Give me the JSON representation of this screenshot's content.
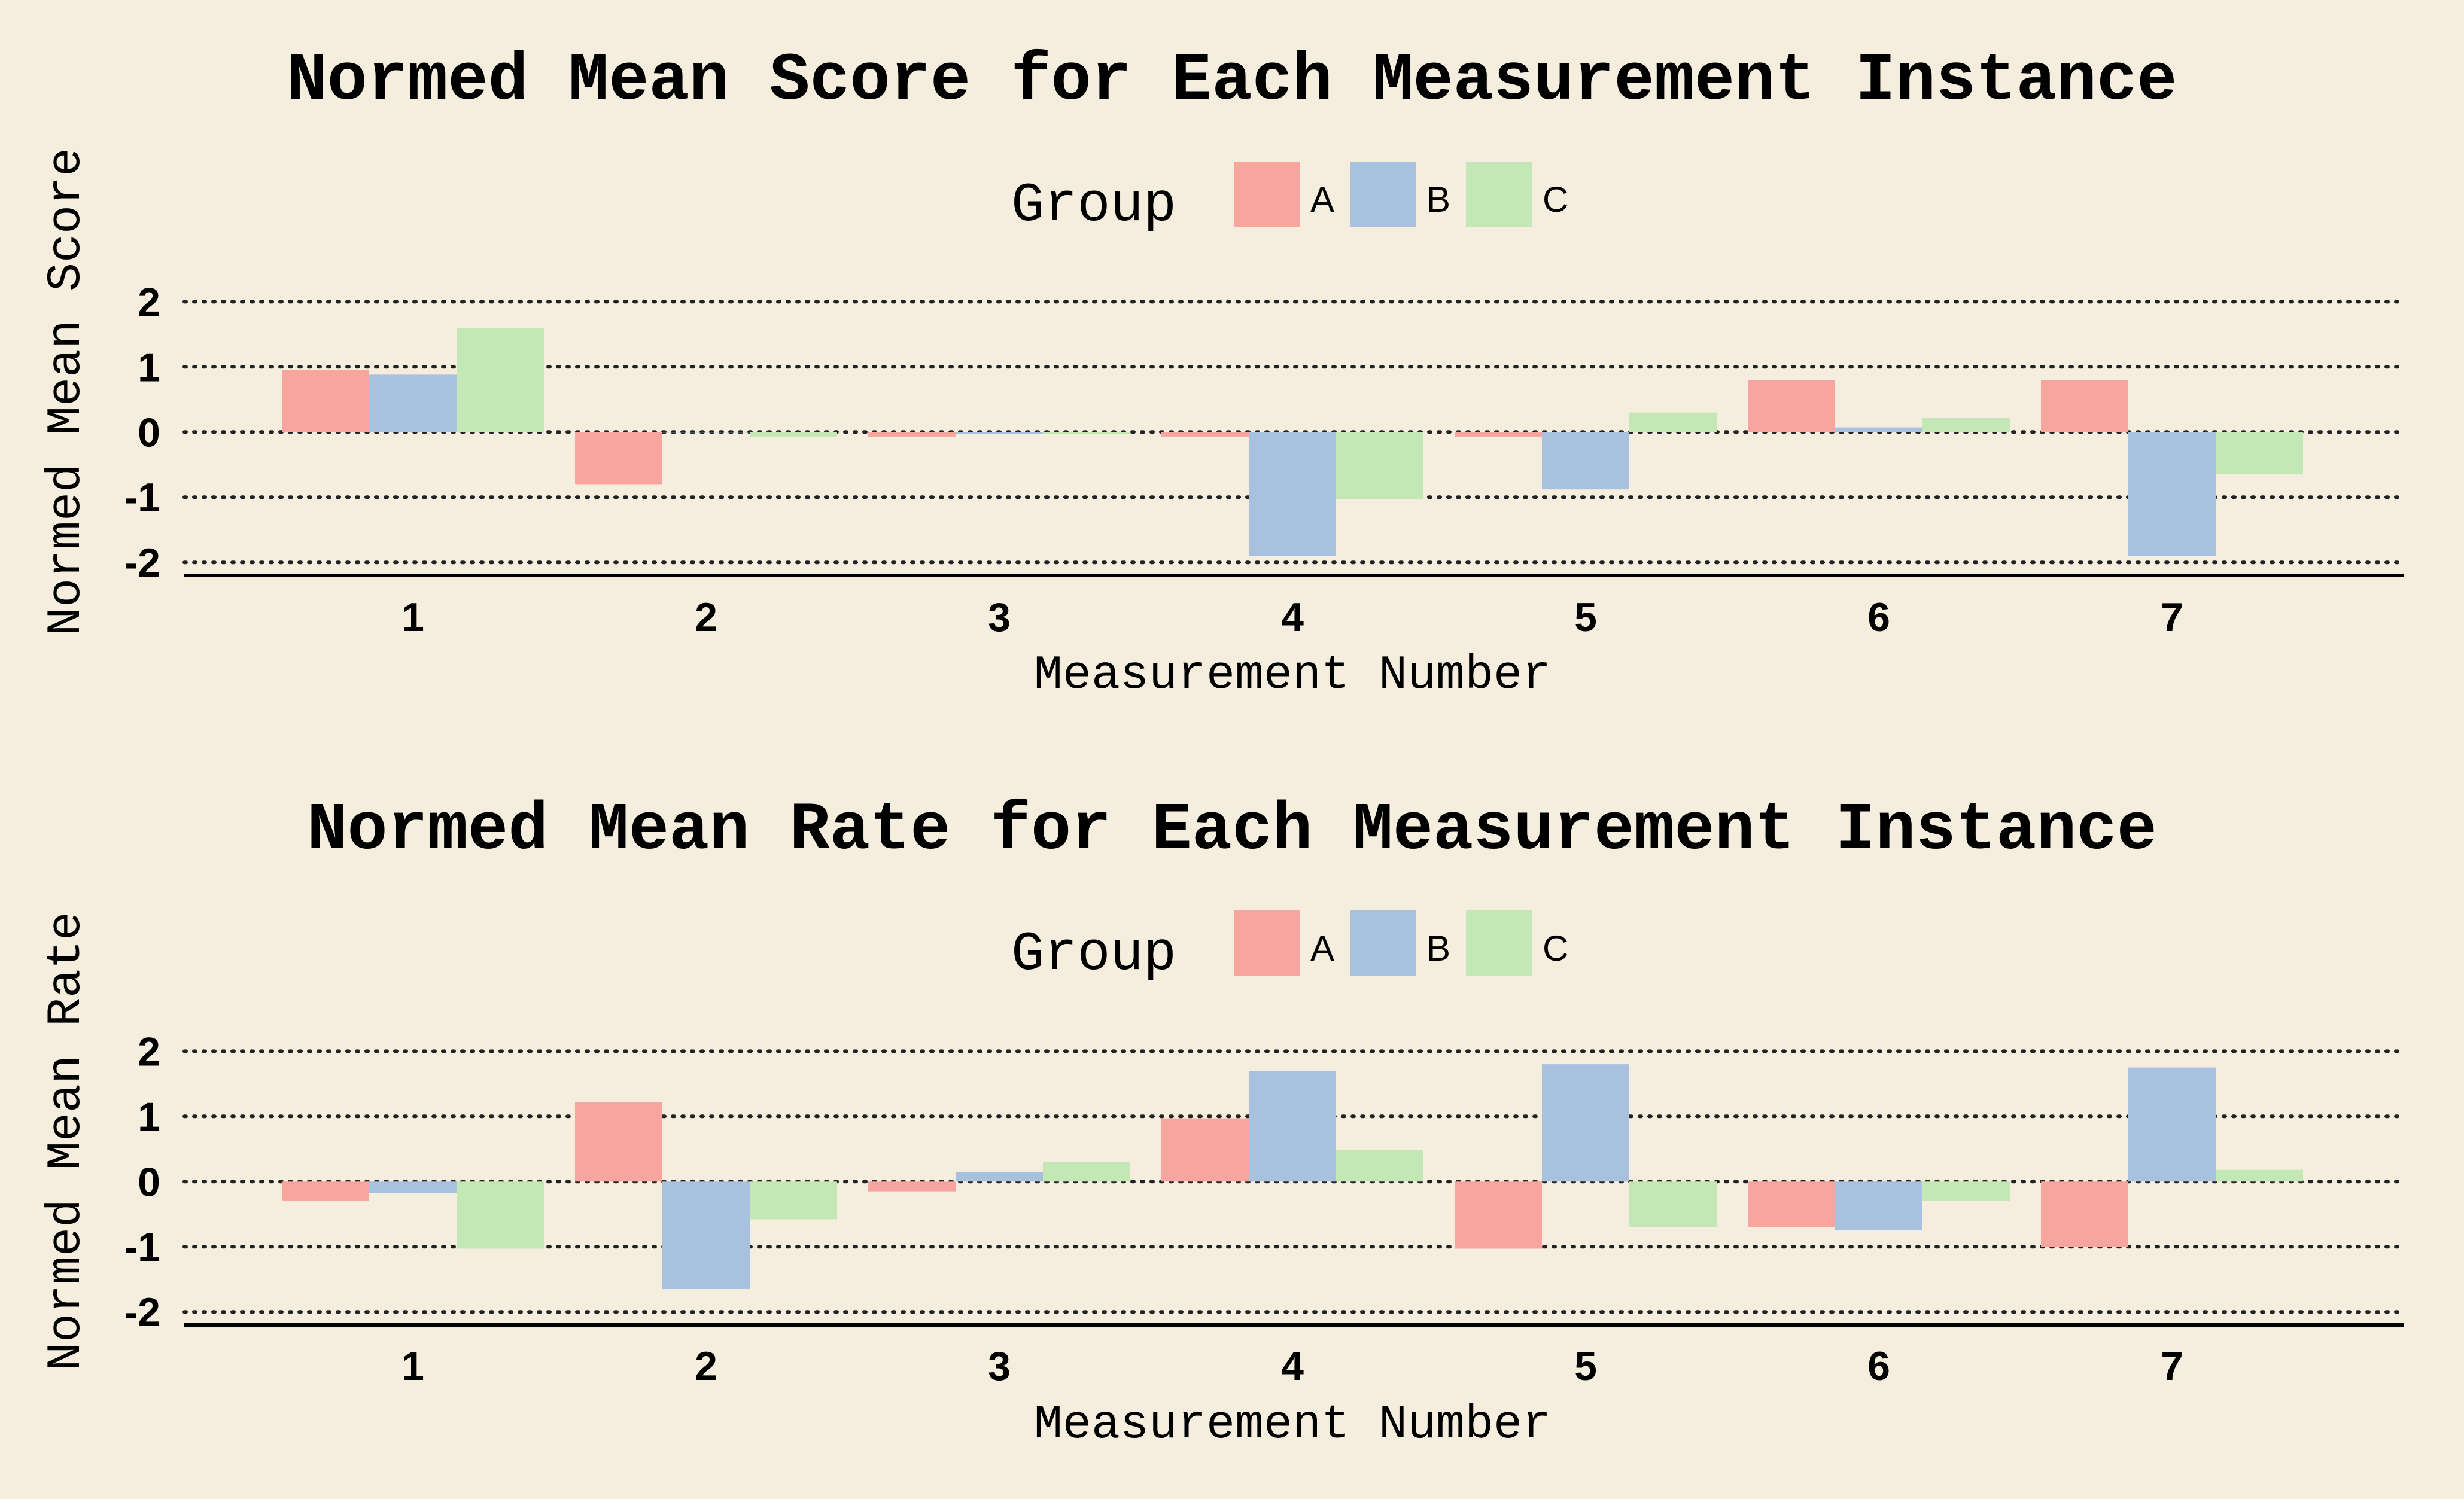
{
  "colors": {
    "background": "#f5eedf",
    "grid": "#222222",
    "axis": "#000000",
    "series": {
      "A": "#f8a5a0",
      "B": "#a8c1de",
      "C": "#c3e7b5"
    }
  },
  "chart_data": [
    {
      "type": "bar",
      "title": "Normed Mean Score for Each Measurement Instance",
      "xlabel": "Measurement Number",
      "ylabel": "Normed Mean Score",
      "legend_title": "Group",
      "legend_placement": "top-center",
      "grid": "horizontal-dotted",
      "ylim": [
        -2.2,
        2.15
      ],
      "yticks": [
        2,
        1,
        0,
        -1,
        -2
      ],
      "categories": [
        "1",
        "2",
        "3",
        "4",
        "5",
        "6",
        "7"
      ],
      "series": [
        {
          "name": "A",
          "values": [
            0.95,
            -0.8,
            -0.07,
            -0.07,
            -0.07,
            0.8,
            0.8
          ]
        },
        {
          "name": "B",
          "values": [
            0.88,
            0.0,
            -0.03,
            -1.9,
            -0.88,
            0.07,
            -1.9
          ]
        },
        {
          "name": "C",
          "values": [
            1.6,
            -0.07,
            -0.03,
            -1.03,
            0.3,
            0.22,
            -0.65
          ]
        }
      ]
    },
    {
      "type": "bar",
      "title": "Normed Mean Rate for Each Measurement Instance",
      "xlabel": "Measurement Number",
      "ylabel": "Normed Mean Rate",
      "legend_title": "Group",
      "legend_placement": "top-center",
      "grid": "horizontal-dotted",
      "ylim": [
        -2.2,
        2.15
      ],
      "yticks": [
        2,
        1,
        0,
        -1,
        -2
      ],
      "categories": [
        "1",
        "2",
        "3",
        "4",
        "5",
        "6",
        "7"
      ],
      "series": [
        {
          "name": "A",
          "values": [
            -0.3,
            1.22,
            -0.15,
            0.97,
            -1.03,
            -0.7,
            -1.0
          ]
        },
        {
          "name": "B",
          "values": [
            -0.18,
            -1.65,
            0.15,
            1.7,
            1.8,
            -0.75,
            1.75
          ]
        },
        {
          "name": "C",
          "values": [
            -1.03,
            -0.58,
            0.3,
            0.48,
            -0.7,
            -0.3,
            0.18
          ]
        }
      ]
    }
  ]
}
